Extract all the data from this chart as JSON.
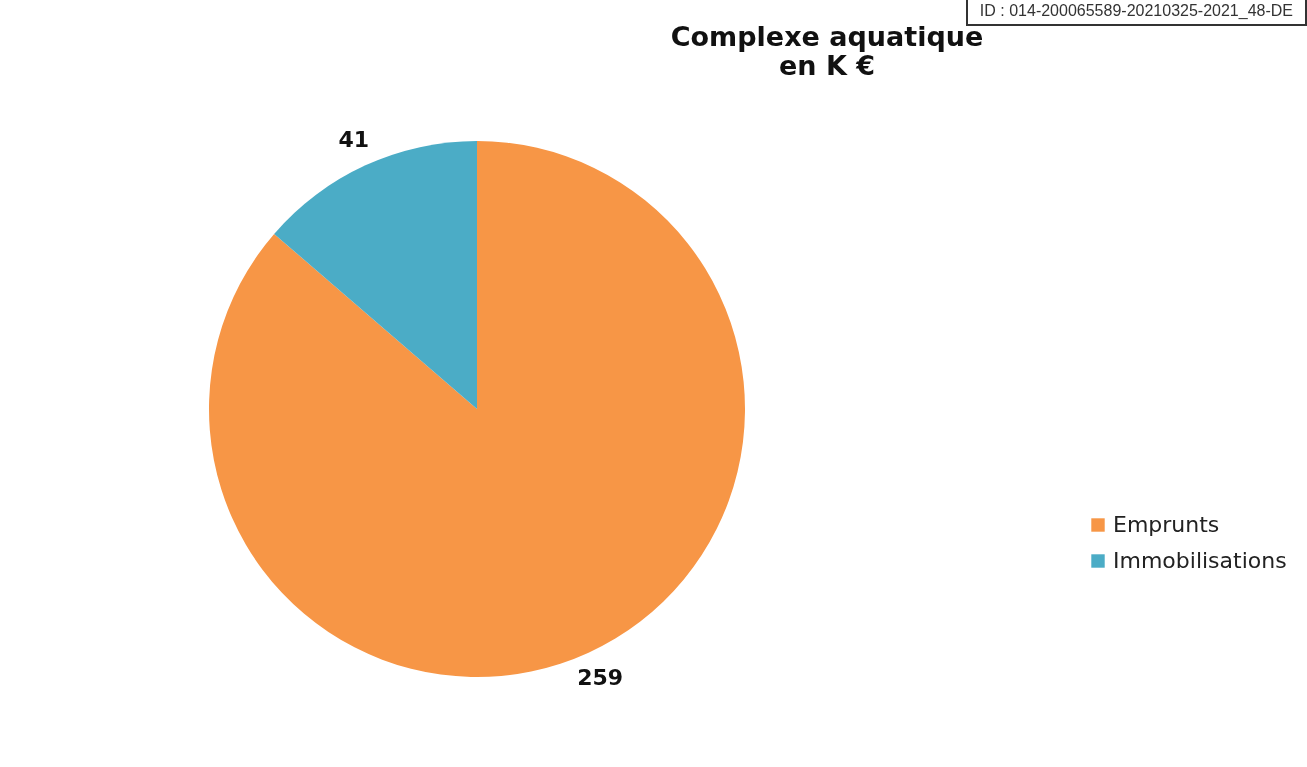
{
  "chart_data": {
    "type": "pie",
    "title": "Complexe aquatique\nen K €",
    "categories": [
      "Emprunts",
      "Immobilisations"
    ],
    "values": [
      259,
      41
    ],
    "colors": [
      "#f79646",
      "#4bacc6"
    ],
    "data_labels": true,
    "legend": "right",
    "annotations": [
      "ID : 014-200065589-20210325-2021_48-DE"
    ]
  }
}
